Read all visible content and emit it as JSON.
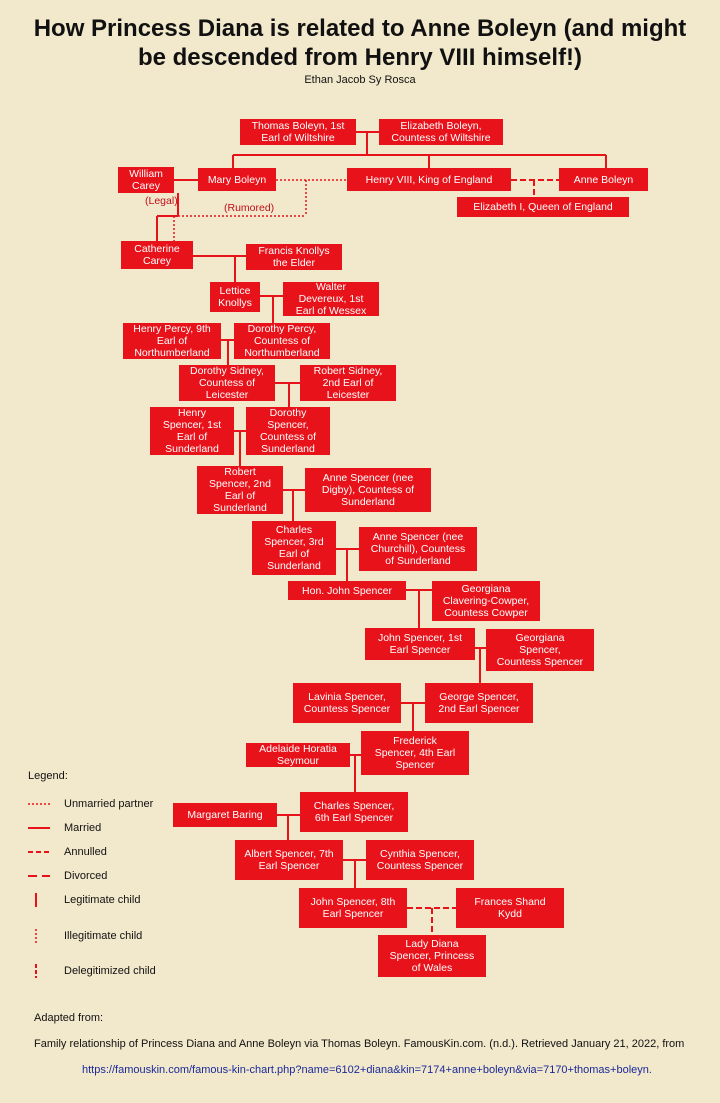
{
  "header": {
    "title": "How Princess Diana is related to Anne Boleyn (and might be descended from Henry VIII himself!)",
    "author": "Ethan Jacob Sy Rosca"
  },
  "colors": {
    "node": "#e8121a",
    "line": "#e8121a",
    "background": "#f2e8cc",
    "link": "#1a2a9a"
  },
  "nodes": {
    "thomas_boleyn": "Thomas Boleyn, 1st\nEarl of Wiltshire",
    "elizabeth_boleyn": "Elizabeth Boleyn,\nCountess of Wiltshire",
    "william_carey": "William\nCarey",
    "mary_boleyn": "Mary Boleyn",
    "henry_viii": "Henry VIII, King of England",
    "anne_boleyn": "Anne Boleyn",
    "elizabeth_i": "Elizabeth I, Queen of England",
    "catherine_carey": "Catherine\nCarey",
    "francis_knollys": "Francis Knollys\nthe Elder",
    "lettice_knollys": "Lettice\nKnollys",
    "walter_devereux": "Walter\nDevereux, 1st\nEarl of Wessex",
    "henry_percy": "Henry Percy, 9th\nEarl of\nNorthumberland",
    "dorothy_percy": "Dorothy Percy,\nCountess of\nNorthumberland",
    "dorothy_sidney": "Dorothy Sidney,\nCountess of\nLeicester",
    "robert_sidney": "Robert Sidney,\n2nd Earl of\nLeicester",
    "henry_spencer": "Henry\nSpencer, 1st\nEarl of\nSunderland",
    "dorothy_spencer": "Dorothy\nSpencer,\nCountess of\nSunderland",
    "robert_spencer": "Robert\nSpencer, 2nd\nEarl of\nSunderland",
    "anne_spencer_digby": "Anne Spencer (nee\nDigby), Countess of\nSunderland",
    "charles_spencer_3": "Charles\nSpencer, 3rd\nEarl of\nSunderland",
    "anne_spencer_churchill": "Anne Spencer (nee\nChurchill), Countess\nof Sunderland",
    "john_spencer_hon": "Hon. John Spencer",
    "georgiana_cowper": "Georgiana\nClavering-Cowper,\nCountess Cowper",
    "john_spencer_1": "John Spencer, 1st\nEarl Spencer",
    "georgiana_spencer": "Georgiana\nSpencer,\nCountess Spencer",
    "lavinia_spencer": "Lavinia Spencer,\nCountess Spencer",
    "george_spencer": "George Spencer,\n2nd Earl Spencer",
    "adelaide_seymour": "Adelaide Horatia\nSeymour",
    "frederick_spencer": "Frederick\nSpencer, 4th Earl\nSpencer",
    "margaret_baring": "Margaret Baring",
    "charles_spencer_6": "Charles Spencer,\n6th Earl Spencer",
    "albert_spencer": "Albert Spencer, 7th\nEarl Spencer",
    "cynthia_spencer": "Cynthia Spencer,\nCountess Spencer",
    "john_spencer_8": "John Spencer, 8th\nEarl Spencer",
    "frances_shand_kydd": "Frances Shand\nKydd",
    "lady_diana": "Lady Diana\nSpencer, Princess\nof Wales"
  },
  "annotations": {
    "legal": "(Legal)",
    "rumored": "(Rumored)"
  },
  "legend": {
    "title": "Legend:",
    "items": [
      {
        "style": "unmarried",
        "label": "Unmarried partner"
      },
      {
        "style": "married",
        "label": "Married"
      },
      {
        "style": "annulled",
        "label": "Annulled"
      },
      {
        "style": "divorced",
        "label": "Divorced"
      },
      {
        "style": "legitimate",
        "label": "Legitimate child"
      },
      {
        "style": "illegitimate",
        "label": "Illegitimate child"
      },
      {
        "style": "delegitimized",
        "label": "Delegitimized child"
      }
    ]
  },
  "footer": {
    "adapted": "Adapted from:",
    "citation": "Family relationship of Princess Diana and Anne Boleyn via Thomas Boleyn. FamousKin.com. (n.d.). Retrieved January 21, 2022, from",
    "url": "https://famouskin.com/famous-kin-chart.php?name=6102+diana&kin=7174+anne+boleyn&via=7170+thomas+boleyn."
  }
}
